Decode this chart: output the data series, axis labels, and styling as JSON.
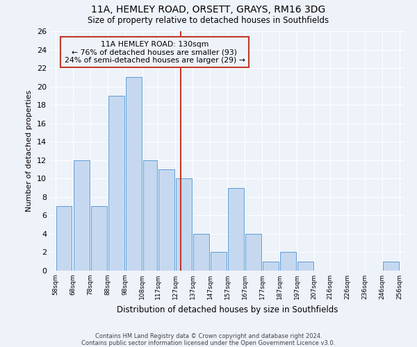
{
  "title": "11A, HEMLEY ROAD, ORSETT, GRAYS, RM16 3DG",
  "subtitle": "Size of property relative to detached houses in Southfields",
  "xlabel": "Distribution of detached houses by size in Southfields",
  "ylabel": "Number of detached properties",
  "bin_labels": [
    "58sqm",
    "68sqm",
    "78sqm",
    "88sqm",
    "98sqm",
    "108sqm",
    "117sqm",
    "127sqm",
    "137sqm",
    "147sqm",
    "157sqm",
    "167sqm",
    "177sqm",
    "187sqm",
    "197sqm",
    "207sqm",
    "216sqm",
    "226sqm",
    "236sqm",
    "246sqm",
    "256sqm"
  ],
  "bin_edges": [
    58,
    68,
    78,
    88,
    98,
    108,
    117,
    127,
    137,
    147,
    157,
    167,
    177,
    187,
    197,
    207,
    216,
    226,
    236,
    246,
    256
  ],
  "bar_heights": [
    7,
    12,
    7,
    19,
    21,
    12,
    11,
    10,
    4,
    2,
    9,
    4,
    1,
    2,
    1,
    0,
    0,
    0,
    0,
    1
  ],
  "bar_color": "#c5d8f0",
  "bar_edgecolor": "#5b9bd5",
  "ylim": [
    0,
    26
  ],
  "yticks": [
    0,
    2,
    4,
    6,
    8,
    10,
    12,
    14,
    16,
    18,
    20,
    22,
    24,
    26
  ],
  "property_size": 130,
  "vline_color": "#c0392b",
  "annotation_box_color": "#c0392b",
  "annotation_title": "11A HEMLEY ROAD: 130sqm",
  "annotation_line1": "← 76% of detached houses are smaller (93)",
  "annotation_line2": "24% of semi-detached houses are larger (29) →",
  "footnote1": "Contains HM Land Registry data © Crown copyright and database right 2024.",
  "footnote2": "Contains public sector information licensed under the Open Government Licence v3.0.",
  "background_color": "#eef2f9",
  "grid_color": "#ffffff"
}
